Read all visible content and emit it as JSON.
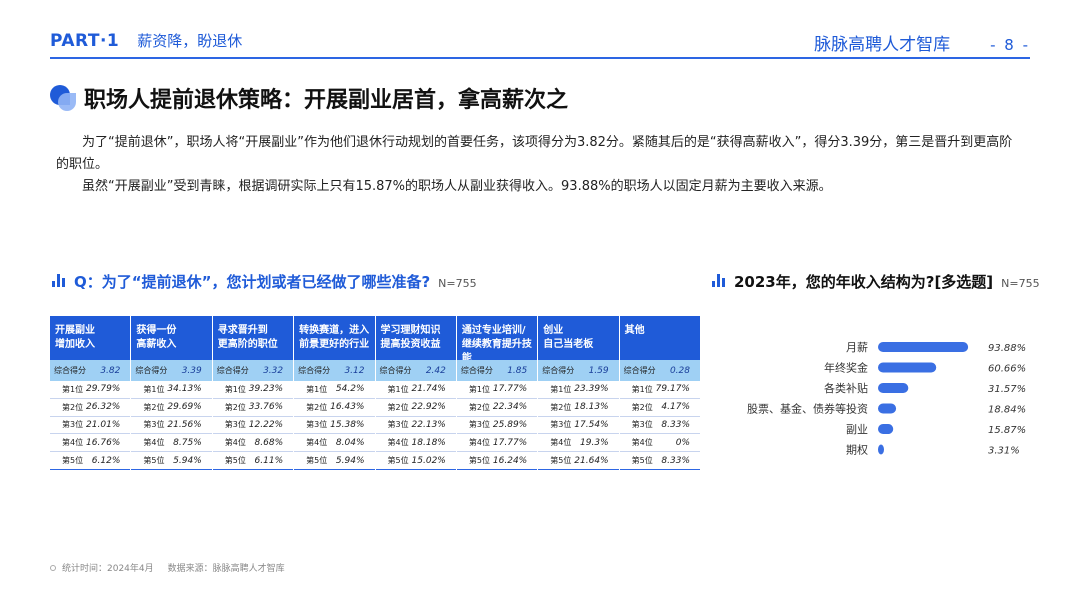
{
  "header": {
    "part": "PART·1",
    "section": "薪资降，盼退休",
    "brand": "脉脉高聘人才智库",
    "page": "- 8 -"
  },
  "title": "职场人提前退休策略：开展副业居首，拿高薪次之",
  "paragraphs": [
    "为了“提前退休”，职场人将“开展副业”作为他们退休行动规划的首要任务，该项得分为3.82分。紧随其后的是“获得高薪收入”，得分3.39分，第三是晋升到更高阶的职位。",
    "虽然“开展副业”受到青睐，根据调研实际上只有15.87%的职场人从副业获得收入。93.88%的职场人以固定月薪为主要收入来源。"
  ],
  "left_question": {
    "text": "Q：为了“提前退休”，您计划或者已经做了哪些准备?",
    "n": "N=755"
  },
  "right_question": {
    "text": "2023年，您的年收入结构为?[多选题]",
    "n": "N=755"
  },
  "table": {
    "score_label": "综合得分",
    "rank_labels": [
      "第1位",
      "第2位",
      "第3位",
      "第4位",
      "第5位"
    ],
    "columns": [
      {
        "line1": "开展副业",
        "line2": "增加收入",
        "score": "3.82",
        "ranks": [
          "29.79%",
          "26.32%",
          "21.01%",
          "16.76%",
          "6.12%"
        ]
      },
      {
        "line1": "获得一份",
        "line2": "高薪收入",
        "score": "3.39",
        "ranks": [
          "34.13%",
          "29.69%",
          "21.56%",
          "8.75%",
          "5.94%"
        ]
      },
      {
        "line1": "寻求晋升到",
        "line2": "更高阶的职位",
        "score": "3.32",
        "ranks": [
          "39.23%",
          "33.76%",
          "12.22%",
          "8.68%",
          "6.11%"
        ]
      },
      {
        "line1": "转换赛道，进入",
        "line2": "前景更好的行业",
        "score": "3.12",
        "ranks": [
          "54.2%",
          "16.43%",
          "15.38%",
          "8.04%",
          "5.94%"
        ]
      },
      {
        "line1": "学习理财知识",
        "line2": "提高投资收益",
        "score": "2.42",
        "ranks": [
          "21.74%",
          "22.92%",
          "22.13%",
          "18.18%",
          "15.02%"
        ]
      },
      {
        "line1": "通过专业培训/",
        "line2": "继续教育提升技能",
        "score": "1.85",
        "ranks": [
          "17.77%",
          "22.34%",
          "25.89%",
          "17.77%",
          "16.24%"
        ]
      },
      {
        "line1": "创业",
        "line2": "自己当老板",
        "score": "1.59",
        "ranks": [
          "23.39%",
          "18.13%",
          "17.54%",
          "19.3%",
          "21.64%"
        ]
      },
      {
        "line1": "其他",
        "line2": "",
        "score": "0.28",
        "ranks": [
          "79.17%",
          "4.17%",
          "8.33%",
          "0%",
          "8.33%"
        ]
      }
    ]
  },
  "chart_data": {
    "type": "bar",
    "orientation": "horizontal",
    "categories": [
      "月薪",
      "年终奖金",
      "各类补贴",
      "股票、基金、债券等投资",
      "副业",
      "期权"
    ],
    "values": [
      93.88,
      60.66,
      31.57,
      18.84,
      15.87,
      3.31
    ],
    "value_labels": [
      "93.88%",
      "60.66%",
      "31.57%",
      "18.84%",
      "15.87%",
      "3.31%"
    ],
    "xlim": [
      0,
      100
    ],
    "grid": false,
    "bar_color": "#3a6fe3"
  },
  "footer": {
    "time": "统计时间：2024年4月",
    "source": "数据来源：脉脉高聘人才智库"
  }
}
